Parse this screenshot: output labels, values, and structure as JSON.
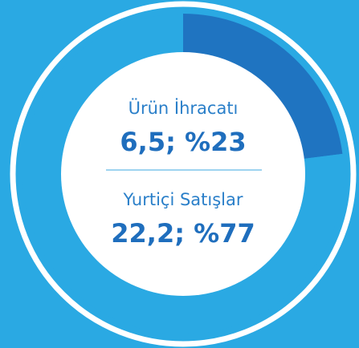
{
  "chart_data": {
    "type": "donut",
    "categories": [
      "Ürün İhracatı",
      "Yurtiçi Satışlar"
    ],
    "values": [
      23,
      77
    ],
    "value_labels": [
      "6,5; %23",
      "22,2; %77"
    ],
    "colors": [
      "#1f74c1",
      "#2aa9e3"
    ]
  }
}
